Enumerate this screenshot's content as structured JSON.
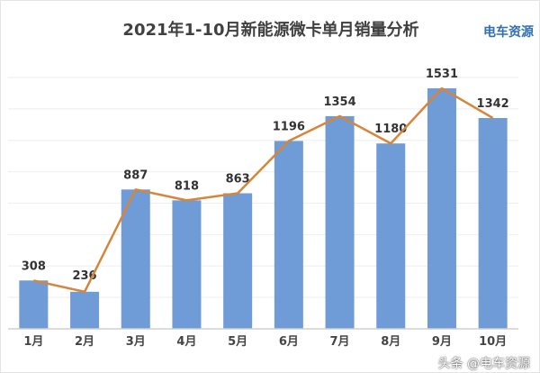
{
  "chart_data": {
    "type": "bar",
    "title": "2021年1-10月新能源微卡单月销量分析",
    "categories": [
      "1月",
      "2月",
      "3月",
      "4月",
      "5月",
      "6月",
      "7月",
      "8月",
      "9月",
      "10月"
    ],
    "values": [
      308,
      236,
      887,
      818,
      863,
      1196,
      1354,
      1180,
      1531,
      1342
    ],
    "overlay_line": true,
    "ylim": [
      0,
      1600
    ],
    "grid": true,
    "y_tick_labels_shown": false,
    "colors": {
      "bar": "#6f9bd6",
      "line": "#d6863a",
      "grid": "#eeeeee",
      "axis": "#d0d0d0"
    }
  },
  "logo": "电车资源",
  "watermark": "头条 @电车资源"
}
